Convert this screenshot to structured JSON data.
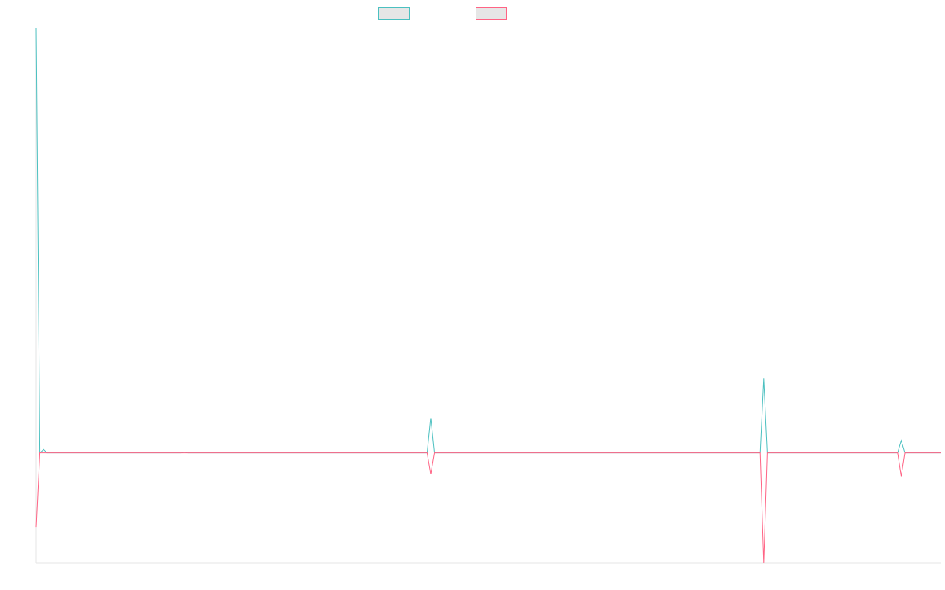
{
  "chart_data": {
    "type": "line",
    "x": [
      0,
      1,
      2,
      3,
      40,
      41,
      42,
      108,
      109,
      110,
      200,
      201,
      202,
      238,
      239,
      240,
      250
    ],
    "series": [
      {
        "color": "#4bc0c0",
        "values": [
          10000,
          0,
          80,
          0,
          0,
          20,
          0,
          0,
          820,
          0,
          0,
          1750,
          0,
          0,
          290,
          0,
          0
        ]
      },
      {
        "color": "#ff6384",
        "values": [
          -1750,
          0,
          0,
          0,
          0,
          0,
          0,
          0,
          -500,
          0,
          0,
          -2600,
          0,
          0,
          -550,
          0,
          0
        ]
      }
    ],
    "xlim": [
      0,
      250
    ],
    "ylim": [
      -2600,
      10000
    ],
    "grid": false,
    "legend": "top-center"
  }
}
